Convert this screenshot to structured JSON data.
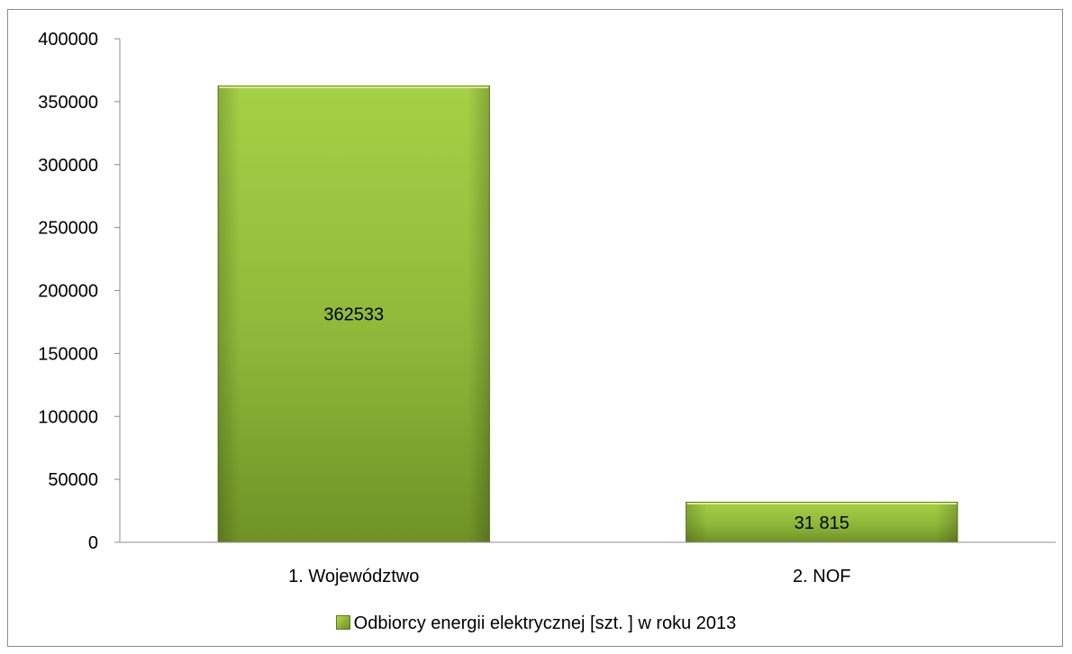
{
  "chart_data": {
    "type": "bar",
    "categories": [
      "1. Województwo",
      "2. NOF"
    ],
    "series": [
      {
        "name": "Odbiorcy energii elektrycznej [szt. ] w roku 2013",
        "values": [
          362533,
          31815
        ]
      }
    ],
    "data_labels": [
      "362533",
      "31 815"
    ],
    "yticks": [
      "0",
      "50000",
      "100000",
      "150000",
      "200000",
      "250000",
      "300000",
      "350000",
      "400000"
    ],
    "ylim": [
      0,
      400000
    ],
    "legend_position": "bottom",
    "grid": false,
    "colors": {
      "bar_light": "#b5da4c",
      "bar_dark": "#6a8c21",
      "axis": "#8c8c8c"
    }
  }
}
